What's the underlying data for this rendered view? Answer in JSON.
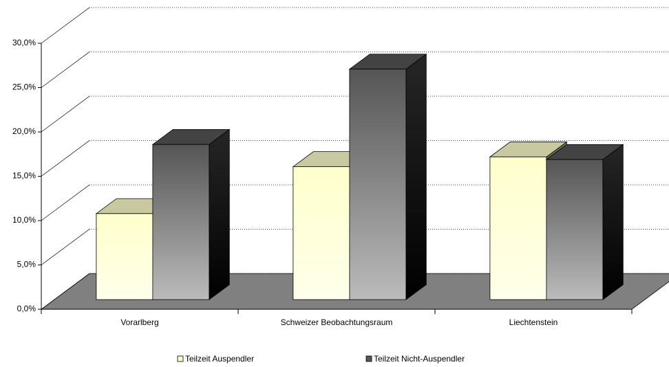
{
  "chart_data": {
    "type": "bar",
    "categories": [
      "Vorarlberg",
      "Schweizer Beobachtungsraum",
      "Liechtenstein"
    ],
    "series": [
      {
        "name": "Teilzeit Auspendler",
        "color": "#ffffcc",
        "values": [
          9.7,
          15.0,
          16.1
        ]
      },
      {
        "name": "Teilzeit Nicht-Auspendler",
        "color": "#555555",
        "values": [
          17.5,
          26.0,
          15.8
        ]
      }
    ],
    "ylim": [
      0,
      30
    ],
    "yticks": [
      {
        "value": 0,
        "label": "0,0%"
      },
      {
        "value": 5,
        "label": "5,0%"
      },
      {
        "value": 10,
        "label": "10,0%"
      },
      {
        "value": 15,
        "label": "15,0%"
      },
      {
        "value": 20,
        "label": "20,0%"
      },
      {
        "value": 25,
        "label": "25,0%"
      },
      {
        "value": 30,
        "label": "30,0%"
      }
    ],
    "grid": true
  }
}
